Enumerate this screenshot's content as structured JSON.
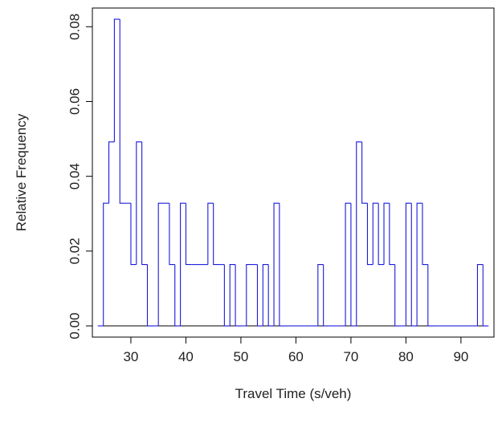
{
  "chart_data": {
    "type": "step",
    "title": "",
    "xlabel": "Travel Time (s/veh)",
    "ylabel": "Relative Frequency",
    "xlim": [
      23,
      96
    ],
    "ylim": [
      -0.003,
      0.085
    ],
    "x_ticks": [
      30,
      40,
      50,
      60,
      70,
      80,
      90
    ],
    "y_ticks": [
      0.0,
      0.02,
      0.04,
      0.06,
      0.08
    ],
    "y_tick_labels": [
      "0.00",
      "0.02",
      "0.04",
      "0.06",
      "0.08"
    ],
    "series": [
      {
        "color": "#1a1adb",
        "bin_width": 1,
        "bins_start_x": [
          24,
          25,
          26,
          27,
          28,
          29,
          30,
          31,
          32,
          33,
          34,
          35,
          36,
          37,
          38,
          39,
          40,
          41,
          42,
          43,
          44,
          45,
          46,
          47,
          48,
          49,
          50,
          51,
          52,
          53,
          54,
          55,
          56,
          57,
          58,
          59,
          60,
          61,
          62,
          63,
          64,
          65,
          66,
          67,
          68,
          69,
          70,
          71,
          72,
          73,
          74,
          75,
          76,
          77,
          78,
          79,
          80,
          81,
          82,
          83,
          84,
          85,
          86,
          87,
          88,
          89,
          90,
          91,
          92,
          93,
          94
        ],
        "values": [
          0,
          0.0328,
          0.0492,
          0.082,
          0.0328,
          0.0328,
          0.0164,
          0.0492,
          0.0164,
          0,
          0,
          0.0328,
          0.0328,
          0.0164,
          0,
          0.0328,
          0.0164,
          0.0164,
          0.0164,
          0.0164,
          0.0328,
          0.0164,
          0.0164,
          0,
          0.0164,
          0,
          0,
          0.0164,
          0.0164,
          0,
          0.0164,
          0,
          0.0328,
          0,
          0,
          0,
          0,
          0,
          0,
          0,
          0.0164,
          0,
          0,
          0,
          0,
          0.0328,
          0,
          0.0492,
          0.0328,
          0.0164,
          0.0328,
          0.0164,
          0.0328,
          0.0164,
          0,
          0,
          0.0328,
          0,
          0.0328,
          0.0164,
          0,
          0,
          0,
          0,
          0,
          0,
          0,
          0,
          0,
          0.0164,
          0
        ]
      }
    ],
    "frame": "box",
    "grid": false,
    "legend": "none"
  }
}
